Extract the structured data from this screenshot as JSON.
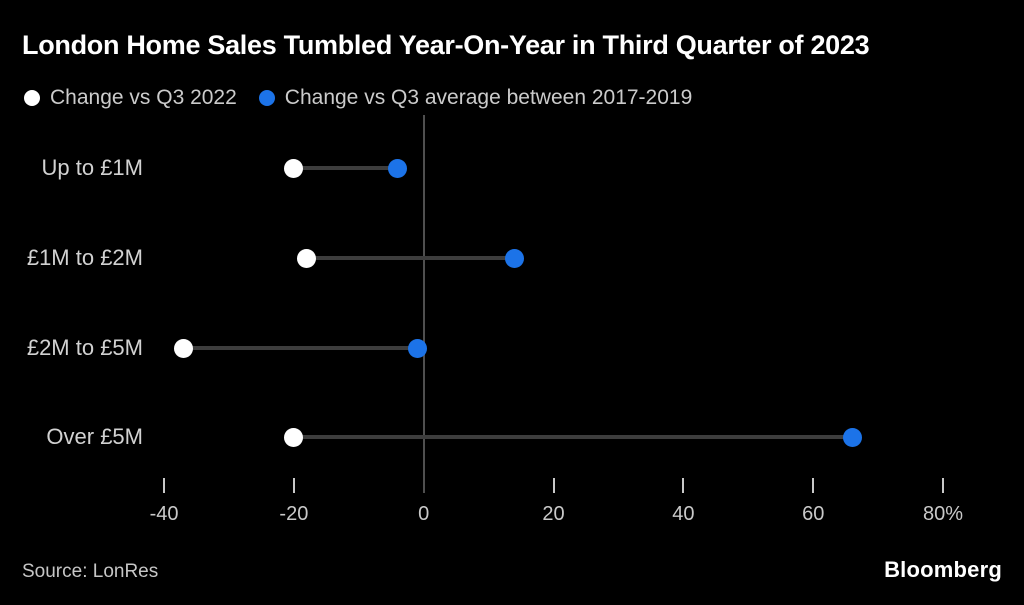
{
  "title": "London Home Sales Tumbled Year-On-Year in Third Quarter of 2023",
  "source": "Source: LonRes",
  "brand": "Bloomberg",
  "colors": {
    "background": "#000000",
    "title": "#ffffff",
    "legend_text": "#cbcbcb",
    "category_label": "#d2d2d2",
    "tick_label": "#c9c9c9",
    "connector_line": "#3d3d3d",
    "zero_line": "#4f4f4f",
    "series_q3_2022": "#ffffff",
    "series_q3_avg": "#1c73e8",
    "source_text": "#c6c6c6",
    "brand_text": "#ffffff"
  },
  "chart_data": {
    "type": "scatter",
    "variant": "dumbbell-dot-plot",
    "title": "London Home Sales Tumbled Year-On-Year in Third Quarter of 2023",
    "categories": [
      "Up to £1M",
      "£1M to £2M",
      "£2M to £5M",
      "Over £5M"
    ],
    "series": [
      {
        "name": "Change vs Q3 2022",
        "color": "#ffffff",
        "values": [
          -20,
          -18,
          -37,
          -20
        ]
      },
      {
        "name": "Change vs Q3 average between 2017-2019",
        "color": "#1c73e8",
        "values": [
          -4,
          14,
          -1,
          66
        ]
      }
    ],
    "xlabel": "",
    "ylabel": "",
    "unit": "%",
    "xlim": [
      -40,
      80
    ],
    "xticks": [
      -40,
      -20,
      0,
      20,
      40,
      60,
      80
    ],
    "xtick_labels": [
      "-40",
      "-20",
      "0",
      "20",
      "40",
      "60",
      "80%"
    ],
    "grid": false,
    "zero_line": true,
    "legend_position": "top-left",
    "orientation": "horizontal-rows"
  }
}
